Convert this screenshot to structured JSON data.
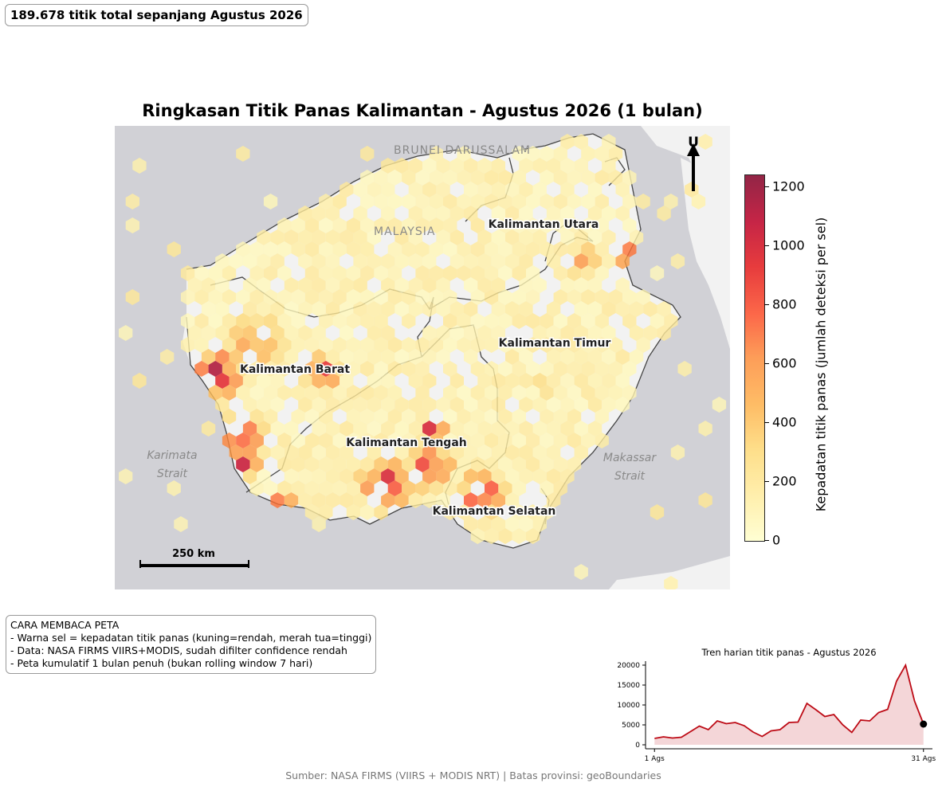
{
  "total_label": "189.678 titik total sepanjang Agustus 2026",
  "title": "Ringkasan Titik Panas Kalimantan - Agustus 2026 (1 bulan)",
  "map": {
    "basemap_labels": [
      "BRUNEI DARUSSALAM",
      "MALAYSIA"
    ],
    "sea_labels": [
      [
        "Karimata",
        "Strait"
      ],
      [
        "Makassar",
        "Strait"
      ]
    ],
    "province_labels": [
      "Kalimantan Utara",
      "Kalimantan Timur",
      "Kalimantan Barat",
      "Kalimantan Tengah",
      "Kalimantan Selatan"
    ],
    "north_arrow": "U",
    "scale_bar": "250 km",
    "colors": {
      "land": "#f2f2f2",
      "sea": "#d1d1d6",
      "low": "#ffffcc",
      "high": "#800026"
    }
  },
  "colorbar": {
    "title": "Kepadatan titik panas (jumlah deteksi per sel)",
    "ticks": [
      "0",
      "200",
      "400",
      "600",
      "800",
      "1000",
      "1200"
    ],
    "min": 0,
    "max": 1240
  },
  "legend": {
    "heading": "CARA MEMBACA PETA",
    "lines": [
      "- Warna sel = kepadatan titik panas (kuning=rendah, merah tua=tinggi)",
      "- Data: NASA FIRMS VIIRS+MODIS, sudah difilter confidence rendah",
      "- Peta kumulatif 1 bulan penuh (bukan rolling window 7 hari)"
    ]
  },
  "chart_data": {
    "type": "area",
    "title": "Tren harian titik panas - Agustus 2026",
    "x_tick_labels": [
      "1 Ags",
      "31 Ags"
    ],
    "y_ticks": [
      0,
      5000,
      10000,
      15000,
      20000
    ],
    "ylim": [
      0,
      20000
    ],
    "x": [
      1,
      2,
      3,
      4,
      5,
      6,
      7,
      8,
      9,
      10,
      11,
      12,
      13,
      14,
      15,
      16,
      17,
      18,
      19,
      20,
      21,
      22,
      23,
      24,
      25,
      26,
      27,
      28,
      29,
      30,
      31
    ],
    "values": [
      1600,
      2000,
      1700,
      1900,
      3300,
      4700,
      3800,
      6000,
      5300,
      5600,
      4800,
      3200,
      2100,
      3500,
      3800,
      5600,
      5700,
      10400,
      8800,
      7100,
      7600,
      5000,
      3100,
      6200,
      6000,
      8100,
      8900,
      16000,
      20000,
      11000,
      5200
    ],
    "color": "#bd0b16"
  },
  "source": "Sumber: NASA FIRMS (VIIRS + MODIS NRT) | Batas provinsi: geoBoundaries"
}
